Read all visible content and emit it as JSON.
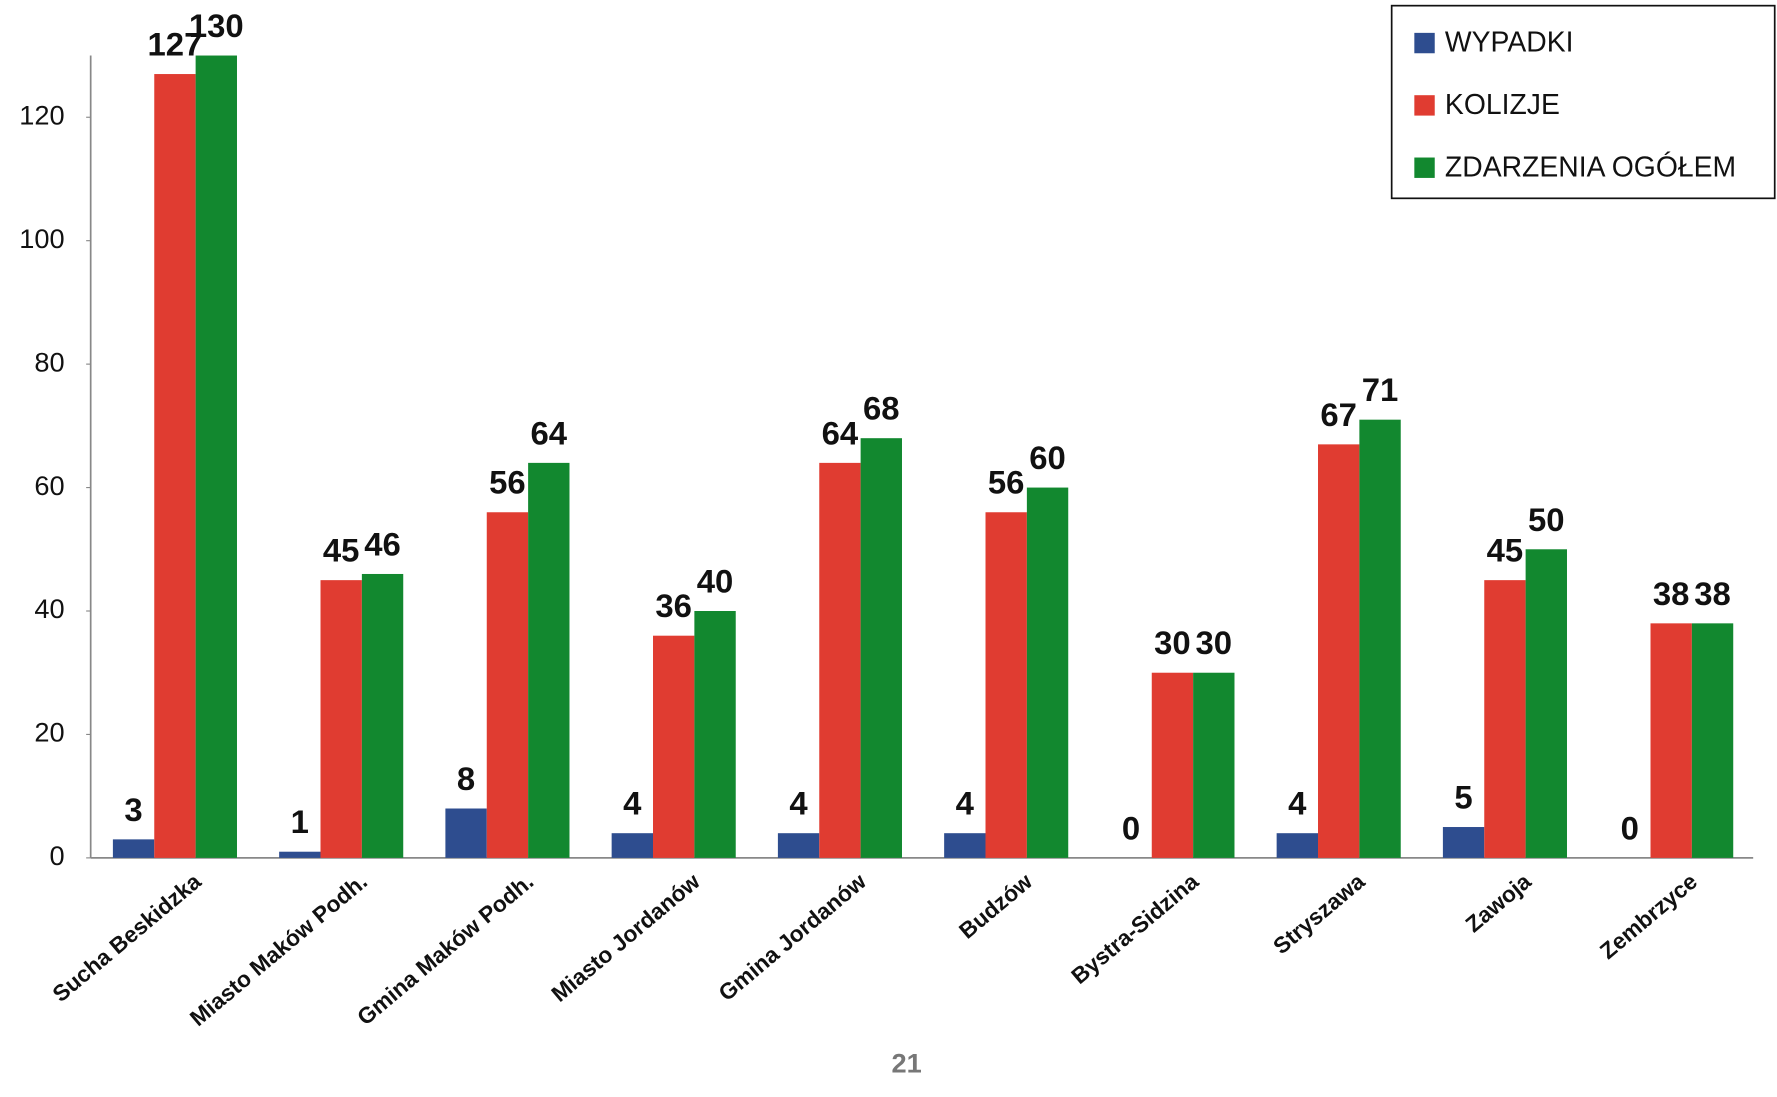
{
  "chart_data": {
    "type": "bar",
    "categories": [
      "Sucha Beskidzka",
      "Miasto Maków Podh.",
      "Gmina Maków Podh.",
      "Miasto Jordanów",
      "Gmina Jordanów",
      "Budzów",
      "Bystra-Sidzina",
      "Stryszawa",
      "Zawoja",
      "Zembrzyce"
    ],
    "series": [
      {
        "name": "WYPADKI",
        "color": "#2e4d8f",
        "values": [
          3,
          1,
          8,
          4,
          4,
          4,
          0,
          4,
          5,
          0
        ]
      },
      {
        "name": "KOLIZJE",
        "color": "#e03c31",
        "values": [
          127,
          45,
          56,
          36,
          64,
          56,
          30,
          67,
          45,
          38
        ]
      },
      {
        "name": "ZDARZENIA OGÓŁEM",
        "color": "#12882f",
        "values": [
          130,
          46,
          64,
          40,
          68,
          60,
          30,
          71,
          50,
          38
        ]
      }
    ],
    "ylim": [
      0,
      130
    ],
    "yticks": [
      0,
      20,
      40,
      60,
      80,
      100,
      120
    ],
    "grid": false,
    "legend": "top-right"
  },
  "page_number": "21"
}
